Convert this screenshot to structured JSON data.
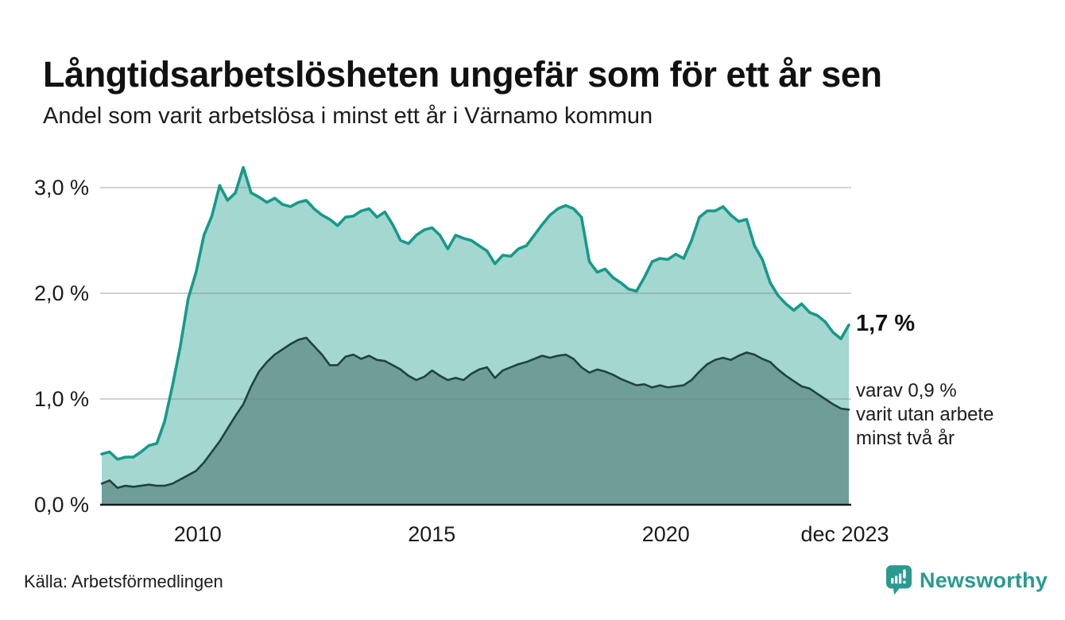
{
  "title": "Långtidsarbetslösheten ungefär som för ett år sen",
  "subtitle": "Andel som varit arbetslösa i minst ett år i Värnamo kommun",
  "annotations": {
    "latest_total": "1,7 %",
    "latest_two_years": "varav 0,9 %\nvarit utan arbete\nminst två år"
  },
  "source": "Källa: Arbetsförmedlingen",
  "logo": {
    "text": "Newsworthy",
    "color": "#2b9a90",
    "icon": "newsworthy-pin-barchart-icon"
  },
  "colors": {
    "total_line": "#17998a",
    "total_fill": "#a3d7d0",
    "two_year_line": "#21423e",
    "two_year_fill": "#6f9e99",
    "grid": "#d6d6d6",
    "axis": "#1a1a1a",
    "accent_logo": "#2b9a90"
  },
  "chart_data": {
    "type": "area",
    "title": "Långtidsarbetslösheten ungefär som för ett år sen",
    "subtitle": "Andel som varit arbetslösa i minst ett år i Värnamo kommun",
    "x_unit": "year",
    "x_start_year": 2008.0,
    "x_end_label": "dec 2023",
    "x_tick_labels": [
      "2010",
      "2015",
      "2020",
      "dec 2023"
    ],
    "x_tick_years": [
      2010,
      2015,
      2020,
      2023.92
    ],
    "y_tick_labels": [
      "3,0 %",
      "2,0 %",
      "1,0 %",
      "0,0 %"
    ],
    "y_ticks": [
      3.0,
      2.0,
      1.0,
      0.0
    ],
    "ylim": [
      0,
      3.33
    ],
    "grid": true,
    "legend": "none",
    "series": [
      {
        "id": "minst-ett-ar",
        "name": "Andel arbetslösa minst ett år",
        "stroke": "#17998a",
        "fill": "#a3d7d0",
        "width": 3.6,
        "end_value_label": "1,7 %",
        "end_value": 1.7,
        "values": [
          0.48,
          0.5,
          0.43,
          0.45,
          0.45,
          0.5,
          0.56,
          0.58,
          0.79,
          1.13,
          1.5,
          1.95,
          2.2,
          2.55,
          2.73,
          3.02,
          2.88,
          2.95,
          3.19,
          2.95,
          2.91,
          2.86,
          2.9,
          2.84,
          2.82,
          2.86,
          2.88,
          2.8,
          2.74,
          2.7,
          2.64,
          2.72,
          2.73,
          2.78,
          2.8,
          2.72,
          2.77,
          2.65,
          2.5,
          2.47,
          2.55,
          2.6,
          2.62,
          2.55,
          2.42,
          2.55,
          2.52,
          2.5,
          2.45,
          2.4,
          2.28,
          2.36,
          2.35,
          2.42,
          2.45,
          2.55,
          2.65,
          2.74,
          2.8,
          2.83,
          2.8,
          2.72,
          2.3,
          2.2,
          2.23,
          2.15,
          2.1,
          2.04,
          2.02,
          2.15,
          2.3,
          2.33,
          2.32,
          2.37,
          2.33,
          2.5,
          2.72,
          2.78,
          2.78,
          2.82,
          2.74,
          2.68,
          2.7,
          2.45,
          2.32,
          2.1,
          1.98,
          1.9,
          1.84,
          1.9,
          1.82,
          1.79,
          1.73,
          1.63,
          1.57,
          1.7
        ]
      },
      {
        "id": "minst-tva-ar",
        "name": "Andel som varit utan arbete minst två år",
        "stroke": "#21423e",
        "fill": "#6f9e99",
        "width": 2.6,
        "end_value_label": "0,9 %",
        "end_value": 0.9,
        "values": [
          0.2,
          0.23,
          0.16,
          0.18,
          0.17,
          0.18,
          0.19,
          0.18,
          0.18,
          0.2,
          0.24,
          0.28,
          0.32,
          0.4,
          0.5,
          0.6,
          0.72,
          0.84,
          0.95,
          1.12,
          1.26,
          1.35,
          1.42,
          1.47,
          1.52,
          1.56,
          1.58,
          1.5,
          1.42,
          1.32,
          1.32,
          1.4,
          1.42,
          1.38,
          1.41,
          1.37,
          1.36,
          1.32,
          1.28,
          1.22,
          1.18,
          1.21,
          1.27,
          1.22,
          1.18,
          1.2,
          1.18,
          1.24,
          1.28,
          1.3,
          1.2,
          1.27,
          1.3,
          1.33,
          1.35,
          1.38,
          1.41,
          1.39,
          1.41,
          1.42,
          1.38,
          1.3,
          1.25,
          1.28,
          1.26,
          1.23,
          1.19,
          1.16,
          1.13,
          1.14,
          1.11,
          1.13,
          1.11,
          1.12,
          1.13,
          1.18,
          1.26,
          1.33,
          1.37,
          1.39,
          1.37,
          1.41,
          1.44,
          1.42,
          1.38,
          1.35,
          1.28,
          1.22,
          1.17,
          1.12,
          1.1,
          1.05,
          1.0,
          0.95,
          0.91,
          0.9
        ]
      }
    ]
  }
}
